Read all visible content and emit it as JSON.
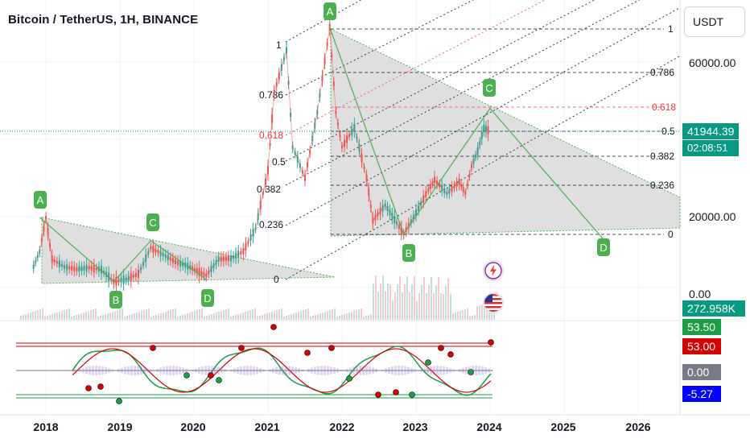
{
  "header": {
    "title": "Bitcoin / TetherUS, 1H, BINANCE",
    "currency": "USDT"
  },
  "price_axis": {
    "ticks": [
      "60000.00",
      "20000.00",
      "0.00"
    ],
    "current_price": "41944.39",
    "countdown": "02:08:51",
    "volume_value": "272.958K"
  },
  "oscillator_axis": {
    "labels": [
      "53.50",
      "53.00",
      "0.00",
      "-5.27"
    ]
  },
  "time_axis": {
    "labels": [
      "2018",
      "2019",
      "2020",
      "2021",
      "2022",
      "2023",
      "2024",
      "2025",
      "2026"
    ]
  },
  "fib_levels": [
    "1",
    "0.786",
    "0.618",
    "0.5",
    "0.382",
    "0.236",
    "0"
  ],
  "fib_channel_labels": [
    "1",
    "0.786",
    "0.618",
    "0.5",
    "0.382",
    "0.236",
    "0"
  ],
  "pattern_points": {
    "large": [
      "A",
      "B",
      "C",
      "D"
    ],
    "small": [
      "A",
      "B",
      "C",
      "D"
    ]
  },
  "icons": [
    "lightning-icon",
    "us-flag-icon"
  ],
  "colors": {
    "up": "#26a69a",
    "down": "#ef5350",
    "pattern_green": "#4caf50",
    "fib_red": "#f23645",
    "price_tag": "#089981",
    "osc_green": "#1b9e46",
    "osc_red": "#d50000",
    "osc_gray": "#787b86",
    "osc_blue": "#0000ff"
  },
  "chart_data": {
    "type": "line",
    "title": "Bitcoin / TetherUS, 1H, BINANCE",
    "xlabel": "",
    "ylabel": "",
    "x_range": [
      "2017-10",
      "2026-06"
    ],
    "ylim": [
      0,
      75000
    ],
    "series": [
      {
        "name": "",
        "x": [
          "2017-11",
          "2017-12",
          "2018-01",
          "2018-02",
          "2018-04",
          "2018-06",
          "2018-08",
          "2018-10",
          "2018-12",
          "2019-02",
          "2019-04",
          "2019-06",
          "2019-08",
          "2019-10",
          "2019-12",
          "2020-03",
          "2020-05",
          "2020-07",
          "2020-09",
          "2020-11",
          "2021-01",
          "2021-02",
          "2021-04",
          "2021-05",
          "2021-07",
          "2021-09",
          "2021-11",
          "2021-12",
          "2022-01",
          "2022-03",
          "2022-05",
          "2022-06",
          "2022-08",
          "2022-11",
          "2023-01",
          "2023-03",
          "2023-04",
          "2023-06",
          "2023-08",
          "2023-09",
          "2023-10",
          "2023-11",
          "2023-12",
          "2024-01"
        ],
        "values": [
          7000,
          11000,
          19800,
          9000,
          7000,
          6400,
          6800,
          6300,
          3200,
          3800,
          5200,
          12000,
          10200,
          8300,
          7200,
          4800,
          9000,
          9200,
          11000,
          17000,
          32000,
          52000,
          63000,
          38000,
          30000,
          47000,
          69000,
          47000,
          38000,
          43000,
          30000,
          19000,
          23000,
          15500,
          21000,
          27000,
          29500,
          26000,
          29000,
          26000,
          33000,
          37000,
          43000,
          41944
        ]
      }
    ],
    "patterns": [
      {
        "name": "large",
        "points": {
          "A": [
            "2021-11",
            69000
          ],
          "B": [
            "2022-11",
            15500
          ],
          "C": [
            "2024-01",
            48000
          ],
          "D": [
            "2025-08",
            13000
          ]
        }
      },
      {
        "name": "small",
        "points": {
          "A": [
            "2017-12",
            19800
          ],
          "B": [
            "2018-12",
            3200
          ],
          "C": [
            "2019-06",
            13800
          ],
          "D": [
            "2020-03",
            3800
          ]
        }
      }
    ]
  }
}
